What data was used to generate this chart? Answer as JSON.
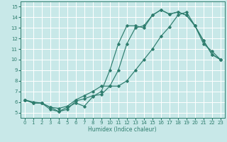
{
  "xlabel": "Humidex (Indice chaleur)",
  "bg_color": "#c8e8e8",
  "grid_color": "#ffffff",
  "line_color": "#2e7d6e",
  "xlim": [
    -0.5,
    23.5
  ],
  "ylim": [
    4.5,
    15.5
  ],
  "xticks": [
    0,
    1,
    2,
    3,
    4,
    5,
    6,
    7,
    8,
    9,
    10,
    11,
    12,
    13,
    14,
    15,
    16,
    17,
    18,
    19,
    20,
    21,
    22,
    23
  ],
  "yticks": [
    5,
    6,
    7,
    8,
    9,
    10,
    11,
    12,
    13,
    14,
    15
  ],
  "line1_x": [
    0,
    1,
    2,
    3,
    4,
    5,
    6,
    7,
    8,
    9,
    10,
    11,
    12,
    13,
    14,
    15,
    16,
    17,
    18,
    19,
    20,
    21,
    22,
    23
  ],
  "line1_y": [
    6.2,
    5.9,
    5.9,
    5.3,
    5.1,
    5.3,
    6.1,
    6.3,
    6.6,
    6.7,
    7.5,
    9.0,
    11.5,
    13.0,
    13.2,
    14.2,
    14.7,
    14.3,
    14.5,
    14.2,
    13.2,
    11.8,
    10.5,
    10.0
  ],
  "line2_x": [
    0,
    1,
    2,
    3,
    4,
    5,
    6,
    7,
    8,
    9,
    10,
    11,
    12,
    13,
    14,
    15,
    16,
    17,
    18,
    19,
    20,
    21,
    22,
    23
  ],
  "line2_y": [
    6.2,
    6.0,
    5.9,
    5.5,
    5.1,
    5.5,
    5.9,
    5.6,
    6.5,
    7.0,
    9.0,
    11.5,
    13.2,
    13.2,
    13.0,
    14.2,
    14.7,
    14.3,
    14.5,
    14.2,
    13.2,
    11.8,
    10.5,
    10.0
  ],
  "line3_x": [
    0,
    1,
    2,
    3,
    4,
    5,
    6,
    7,
    8,
    9,
    10,
    11,
    12,
    13,
    14,
    15,
    16,
    17,
    18,
    19,
    20,
    21,
    22,
    23
  ],
  "line3_y": [
    6.2,
    5.9,
    5.9,
    5.5,
    5.4,
    5.6,
    6.2,
    6.6,
    7.0,
    7.5,
    7.5,
    7.5,
    8.0,
    9.0,
    10.0,
    11.0,
    12.2,
    13.1,
    14.2,
    14.5,
    13.2,
    11.5,
    10.8,
    10.0
  ]
}
